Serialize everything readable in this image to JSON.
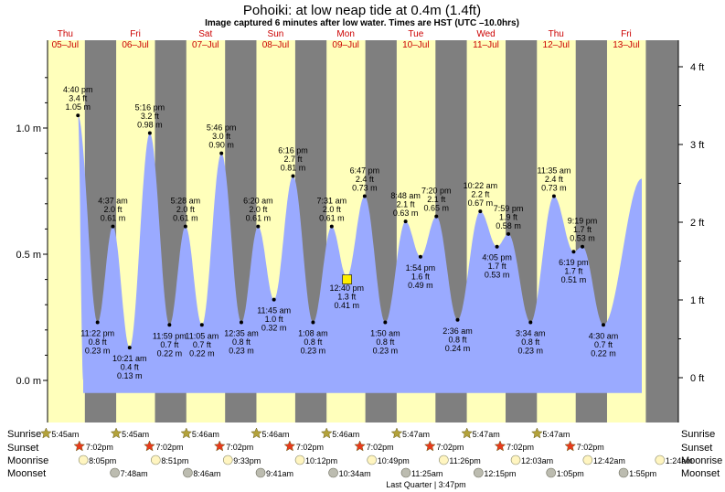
{
  "header": {
    "title": "Pohoiki: at low  neap tide at 0.4m (1.4ft)",
    "subtitle": "Image captured 6 minutes after low water. Times are HST (UTC –10.0hrs)"
  },
  "days": [
    {
      "dow": "Thu",
      "date": "05–Jul"
    },
    {
      "dow": "Fri",
      "date": "06–Jul"
    },
    {
      "dow": "Sat",
      "date": "07–Jul"
    },
    {
      "dow": "Sun",
      "date": "08–Jul"
    },
    {
      "dow": "Mon",
      "date": "09–Jul"
    },
    {
      "dow": "Tue",
      "date": "10–Jul"
    },
    {
      "dow": "Wed",
      "date": "11–Jul"
    },
    {
      "dow": "Thu",
      "date": "12–Jul"
    },
    {
      "dow": "Fri",
      "date": "13–Jul"
    }
  ],
  "rows": {
    "sunrise": "Sunrise",
    "sunset": "Sunset",
    "moonrise": "Moonrise",
    "moonset": "Moonset"
  },
  "sunrise_times": [
    "5:45am",
    "5:45am",
    "5:46am",
    "5:46am",
    "5:46am",
    "5:47am",
    "5:47am",
    "5:47am"
  ],
  "sunset_times": [
    "7:02pm",
    "7:02pm",
    "7:02pm",
    "7:02pm",
    "7:02pm",
    "7:02pm",
    "7:02pm",
    "7:02pm"
  ],
  "moonrise_times": [
    "8:05pm",
    "8:51pm",
    "9:33pm",
    "10:12pm",
    "10:49pm",
    "11:26pm",
    "12:03am",
    "12:42am",
    "1:24am"
  ],
  "moonset_times": [
    "7:48am",
    "8:46am",
    "9:41am",
    "10:34am",
    "11:25am",
    "12:15pm",
    "1:05pm",
    "1:55pm"
  ],
  "moon_phase": "Last Quarter | 3:47pm",
  "colors": {
    "night": "#7f7f7f",
    "day": "#ffffbb",
    "water": "#9aaaff",
    "plot_bg": "#ffffff",
    "day_label": "#cc0000",
    "sun_star": "#b3a23a",
    "sunset_star": "#e83a1c",
    "moon_rise": "#fff5c0",
    "moon_set": "#bcbcb0",
    "current_marker": "#ffee00"
  },
  "chart_data": {
    "type": "area",
    "title": "Pohoiki: at low  neap tide at 0.4m (1.4ft)",
    "left_axis": {
      "unit": "m",
      "ticks": [
        "0.0 m",
        "0.5 m",
        "1.0 m"
      ],
      "tick_values": [
        0.0,
        0.5,
        1.0
      ]
    },
    "right_axis": {
      "unit": "ft",
      "ticks": [
        "0 ft",
        "1 ft",
        "2 ft",
        "3 ft",
        "4 ft"
      ],
      "tick_values": [
        0,
        1,
        2,
        3,
        4
      ]
    },
    "ylim_m": [
      -0.18,
      1.28
    ],
    "current_level": {
      "m": 0.4,
      "ft": 1.4
    },
    "tides": [
      {
        "type": "high",
        "time": "4:40 pm",
        "ft": "3.4 ft",
        "m": 1.05,
        "mlabel": "1.05 m"
      },
      {
        "type": "low",
        "time": "11:22 pm",
        "ft": "0.8 ft",
        "m": 0.23,
        "mlabel": "0.23 m"
      },
      {
        "type": "high",
        "time": "4:37 am",
        "ft": "2.0 ft",
        "m": 0.61,
        "mlabel": "0.61 m"
      },
      {
        "type": "low",
        "time": "10:21 am",
        "ft": "0.4 ft",
        "m": 0.13,
        "mlabel": "0.13 m"
      },
      {
        "type": "high",
        "time": "5:16 pm",
        "ft": "3.2 ft",
        "m": 0.98,
        "mlabel": "0.98 m"
      },
      {
        "type": "low",
        "time": "11:59 pm",
        "ft": "0.7 ft",
        "m": 0.22,
        "mlabel": "0.22 m"
      },
      {
        "type": "high",
        "time": "5:28 am",
        "ft": "2.0 ft",
        "m": 0.61,
        "mlabel": "0.61 m"
      },
      {
        "type": "low",
        "time": "11:05 am",
        "ft": "0.7 ft",
        "m": 0.22,
        "mlabel": "0.22 m"
      },
      {
        "type": "high",
        "time": "5:46 pm",
        "ft": "3.0 ft",
        "m": 0.9,
        "mlabel": "0.90 m"
      },
      {
        "type": "low",
        "time": "12:35 am",
        "ft": "0.8 ft",
        "m": 0.23,
        "mlabel": "0.23 m"
      },
      {
        "type": "high",
        "time": "6:20 am",
        "ft": "2.0 ft",
        "m": 0.61,
        "mlabel": "0.61 m"
      },
      {
        "type": "low",
        "time": "11:45 am",
        "ft": "1.0 ft",
        "m": 0.32,
        "mlabel": "0.32 m"
      },
      {
        "type": "high",
        "time": "6:16 pm",
        "ft": "2.7 ft",
        "m": 0.81,
        "mlabel": "0.81 m"
      },
      {
        "type": "low",
        "time": "1:08 am",
        "ft": "0.8 ft",
        "m": 0.23,
        "mlabel": "0.23 m"
      },
      {
        "type": "high",
        "time": "7:31 am",
        "ft": "2.0 ft",
        "m": 0.61,
        "mlabel": "0.61 m"
      },
      {
        "type": "low",
        "time": "12:40 pm",
        "ft": "1.3 ft",
        "m": 0.41,
        "mlabel": "0.41 m"
      },
      {
        "type": "high",
        "time": "6:47 pm",
        "ft": "2.4 ft",
        "m": 0.73,
        "mlabel": "0.73 m"
      },
      {
        "type": "low",
        "time": "1:50 am",
        "ft": "0.8 ft",
        "m": 0.23,
        "mlabel": "0.23 m"
      },
      {
        "type": "high",
        "time": "8:48 am",
        "ft": "2.1 ft",
        "m": 0.63,
        "mlabel": "0.63 m"
      },
      {
        "type": "low",
        "time": "1:54 pm",
        "ft": "1.6 ft",
        "m": 0.49,
        "mlabel": "0.49 m"
      },
      {
        "type": "high",
        "time": "7:20 pm",
        "ft": "2.1 ft",
        "m": 0.65,
        "mlabel": "0.65 m"
      },
      {
        "type": "low",
        "time": "2:36 am",
        "ft": "0.8 ft",
        "m": 0.24,
        "mlabel": "0.24 m"
      },
      {
        "type": "high",
        "time": "10:22 am",
        "ft": "2.2 ft",
        "m": 0.67,
        "mlabel": "0.67 m"
      },
      {
        "type": "low",
        "time": "4:05 pm",
        "ft": "1.7 ft",
        "m": 0.53,
        "mlabel": "0.53 m"
      },
      {
        "type": "high",
        "time": "7:59 pm",
        "ft": "1.9 ft",
        "m": 0.58,
        "mlabel": "0.58 m"
      },
      {
        "type": "low",
        "time": "3:34 am",
        "ft": "0.8 ft",
        "m": 0.23,
        "mlabel": "0.23 m"
      },
      {
        "type": "high",
        "time": "11:35 am",
        "ft": "2.4 ft",
        "m": 0.73,
        "mlabel": "0.73 m"
      },
      {
        "type": "low",
        "time": "6:19 pm",
        "ft": "1.7 ft",
        "m": 0.51,
        "mlabel": "0.51 m"
      },
      {
        "type": "high",
        "time": "9:19 pm",
        "ft": "1.7 ft",
        "m": 0.53,
        "mlabel": "0.53 m"
      },
      {
        "type": "low",
        "time": "4:30 am",
        "ft": "0.7 ft",
        "m": 0.22,
        "mlabel": "0.22 m"
      }
    ]
  }
}
